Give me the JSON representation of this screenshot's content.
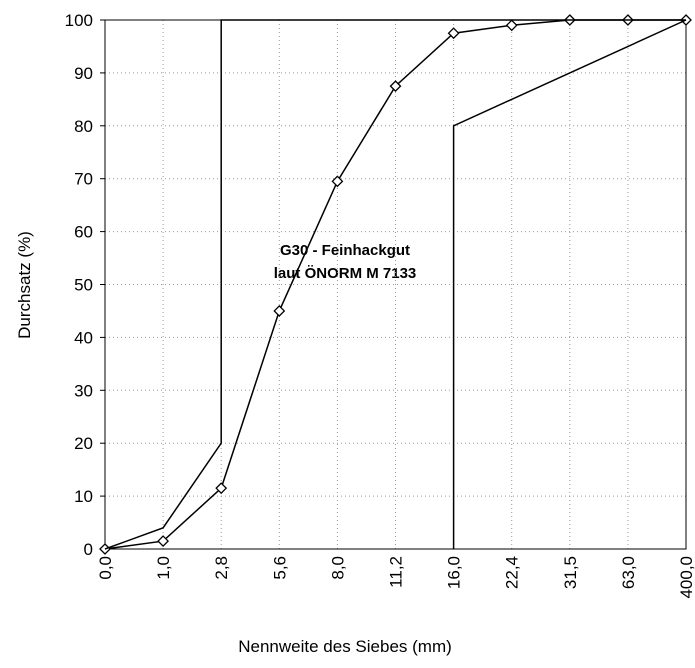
{
  "chart_data": {
    "type": "line",
    "xlabel": "Nennweite des Siebes (mm)",
    "ylabel": "Durchsatz (%)",
    "annotation": [
      "G30 - Feinhackgut",
      "laut ÖNORM M 7133"
    ],
    "categories": [
      "0,0",
      "1,0",
      "2,8",
      "5,6",
      "8,0",
      "11,2",
      "16,0",
      "22,4",
      "31,5",
      "63,0",
      "400,0"
    ],
    "series": [
      {
        "color": "#000000",
        "marker": "diamond",
        "values": [
          0,
          1.5,
          11.5,
          45,
          69.5,
          87.5,
          97.5,
          99,
          100,
          100,
          100
        ]
      },
      {
        "color": "#000000",
        "x": [
          "0,0",
          "1,0",
          "2,8",
          "2,8",
          "400,0"
        ],
        "values": [
          0,
          4,
          20,
          100,
          100
        ]
      },
      {
        "color": "#000000",
        "x": [
          "16,0",
          "16,0",
          "400,0"
        ],
        "values": [
          0,
          80,
          100
        ]
      }
    ],
    "ylim": [
      0,
      100
    ],
    "yticks": [
      0,
      10,
      20,
      30,
      40,
      50,
      60,
      70,
      80,
      90,
      100
    ],
    "grid": true
  }
}
